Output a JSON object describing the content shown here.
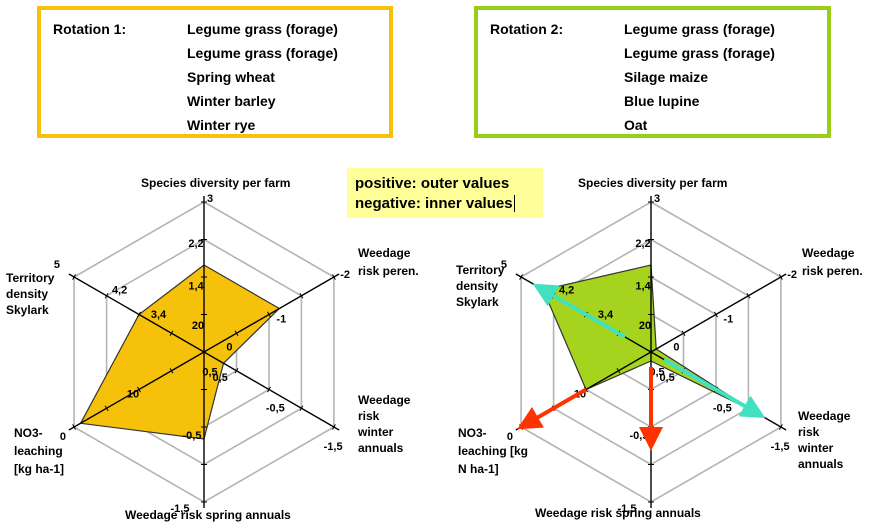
{
  "rotation1": {
    "title": "Rotation 1:",
    "crops": [
      "Legume grass (forage)",
      "Legume grass (forage)",
      "Spring wheat",
      "Winter barley",
      "Winter rye"
    ],
    "border_color": "#f5c10a"
  },
  "rotation2": {
    "title": "Rotation 2:",
    "crops": [
      "Legume grass (forage)",
      "Legume grass (forage)",
      "Silage maize",
      "Blue lupine",
      "Oat"
    ],
    "border_color": "#9acd1a"
  },
  "legend_note": {
    "line1": "positive: outer values",
    "line2": "negative: inner values",
    "background": "#ffff99"
  },
  "chart_data": [
    {
      "type": "radar",
      "fill_color": "#f5c10a",
      "axes": [
        {
          "label": "Species diversity per farm",
          "ticks": [
            "20",
            "1,4",
            "2,2",
            "3"
          ],
          "outer": "3"
        },
        {
          "label": "Weedage risk peren.",
          "ticks": [
            "0",
            "-1",
            "-2"
          ],
          "outer": "-2"
        },
        {
          "label": "Weedage risk winter annuals",
          "ticks": [
            "0,5",
            "-0,5",
            "-1,5"
          ],
          "outer": "-1,5"
        },
        {
          "label": "Weedage risk spring annuals",
          "ticks": [
            "0,5",
            "-0,5",
            "-1,5"
          ],
          "outer": "-1,5"
        },
        {
          "label": "NO3-leaching [kg ha-1]",
          "ticks": [
            "10",
            "0"
          ],
          "outer": "0"
        },
        {
          "label": "Territory density Skylark",
          "ticks": [
            "3,4",
            "4,2",
            "5"
          ],
          "outer": "5"
        }
      ],
      "values_fraction_of_radius": [
        0.58,
        0.58,
        0.15,
        0.58,
        0.95,
        0.5
      ]
    },
    {
      "type": "radar",
      "fill_color": "#a6d41e",
      "axes": [
        {
          "label": "Species diversity per farm",
          "ticks": [
            "20",
            "1,4",
            "2,2",
            "3"
          ],
          "outer": "3"
        },
        {
          "label": "Weedage risk peren.",
          "ticks": [
            "0",
            "-1",
            "-2"
          ],
          "outer": "-2"
        },
        {
          "label": "Weedage risk winter annuals",
          "ticks": [
            "0,5",
            "-0,5",
            "-1,5"
          ],
          "outer": "-1,5"
        },
        {
          "label": "Weedage risk spring annuals",
          "ticks": [
            "0,5",
            "-0,5",
            "-1,5"
          ],
          "outer": "-1,5"
        },
        {
          "label": "NO3-leaching [kg N ha-1]",
          "ticks": [
            "10",
            "0"
          ],
          "outer": "0"
        },
        {
          "label": "Territory density Skylark",
          "ticks": [
            "3,4",
            "4,2",
            "5"
          ],
          "outer": "5"
        }
      ],
      "values_fraction_of_radius": [
        0.58,
        0.04,
        0.8,
        0.06,
        0.5,
        0.83
      ],
      "change_arrows": [
        {
          "axis": "Territory density Skylark",
          "from": 0.2,
          "to": 0.83,
          "color": "#40e0c0"
        },
        {
          "axis": "Weedage risk winter annuals",
          "from": 0.1,
          "to": 0.8,
          "color": "#40e0c0"
        },
        {
          "axis": "Weedage risk spring annuals",
          "from": 0.1,
          "to": 0.58,
          "color": "#ff3300"
        },
        {
          "axis": "NO3-leaching [kg N ha-1]",
          "from": 0.5,
          "to": 0.95,
          "color": "#ff3300"
        }
      ]
    }
  ]
}
